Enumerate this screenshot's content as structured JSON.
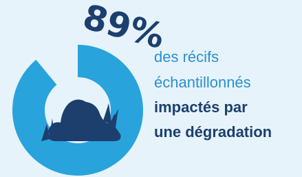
{
  "chart_data": {
    "type": "donut",
    "values": [
      89
    ],
    "value_labels": [
      "89%"
    ],
    "color": "#29a3dc",
    "text_lines": [
      "des récifs",
      "échantillonnés"
    ],
    "bold_lines": [
      "impactés par",
      "une dégradation"
    ]
  }
}
